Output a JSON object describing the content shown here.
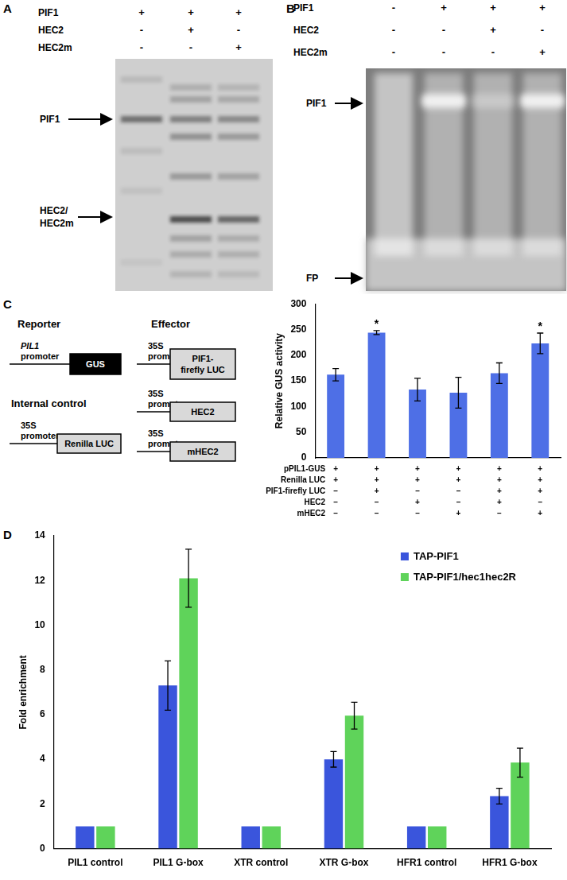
{
  "panel_labels": [
    "A",
    "B",
    "C",
    "D"
  ],
  "panel_a": {
    "rows": [
      {
        "name": "PIF1",
        "signs": [
          "+",
          "+",
          "+"
        ]
      },
      {
        "name": "HEC2",
        "signs": [
          "-",
          "+",
          "-"
        ]
      },
      {
        "name": "HEC2m",
        "signs": [
          "-",
          "-",
          "+"
        ]
      }
    ],
    "band_labels": [
      [
        "PIF1"
      ],
      [
        "HEC2/",
        "HEC2m"
      ]
    ]
  },
  "panel_b": {
    "rows": [
      {
        "name": "PIF1",
        "signs": [
          "-",
          "+",
          "+",
          "+"
        ]
      },
      {
        "name": "HEC2",
        "signs": [
          "-",
          "-",
          "+",
          "-"
        ]
      },
      {
        "name": "HEC2m",
        "signs": [
          "-",
          "-",
          "-",
          "+"
        ]
      }
    ],
    "band_labels": [
      [
        "PIF1"
      ],
      [
        "FP"
      ]
    ]
  },
  "panel_c_diagram": {
    "reporter_title": "Reporter",
    "internal_control_title": "Internal control",
    "effector_title": "Effector",
    "reporter": {
      "promoter": [
        "PIL1",
        "promoter"
      ],
      "gene": [
        "GUS"
      ]
    },
    "internal_control": {
      "promoter": [
        "35S",
        "promoter"
      ],
      "gene": [
        "Renilla LUC"
      ]
    },
    "effectors": [
      {
        "promoter": [
          "35S",
          "promoter"
        ],
        "gene": [
          "PIF1-",
          "firefly LUC"
        ]
      },
      {
        "promoter": [
          "35S",
          "promoter"
        ],
        "gene": [
          "HEC2"
        ]
      },
      {
        "promoter": [
          "35S",
          "promoter"
        ],
        "gene": [
          "mHEC2"
        ]
      }
    ]
  },
  "chart_data": [
    {
      "type": "bar",
      "y_label": "Relative GUS activity",
      "categories": [
        null,
        null,
        null,
        null,
        null,
        null
      ],
      "values": [
        162,
        244,
        133,
        127,
        165,
        223
      ],
      "errors": [
        12,
        4,
        22,
        30,
        20,
        20
      ],
      "significance": [
        null,
        "*",
        null,
        null,
        null,
        "*"
      ],
      "conditions": [
        {
          "name": "pPIL1-GUS",
          "signs": [
            "+",
            "+",
            "+",
            "+",
            "+",
            "+"
          ]
        },
        {
          "name": "Renilla LUC",
          "signs": [
            "+",
            "+",
            "+",
            "+",
            "+",
            "+"
          ]
        },
        {
          "name": "PIF1-firefly LUC",
          "signs": [
            "–",
            "+",
            "–",
            "–",
            "+",
            "+"
          ]
        },
        {
          "name": "HEC2",
          "signs": [
            "–",
            "–",
            "+",
            "–",
            "+",
            "–"
          ]
        },
        {
          "name": "mHEC2",
          "signs": [
            "–",
            "–",
            "–",
            "+",
            "–",
            "+"
          ]
        }
      ],
      "color": "#4e6fe6",
      "ylim": [
        0,
        300
      ],
      "yticks": [
        0,
        50,
        100,
        150,
        200,
        250,
        300
      ],
      "grid": false,
      "tick_labels": "y"
    },
    {
      "type": "bar",
      "y_label": "Fold enrichment",
      "categories": [
        "PIL1 control",
        "PIL1 G-box",
        "XTR control",
        "XTR G-box",
        "HFR1 control",
        "HFR1 G-box"
      ],
      "series": [
        {
          "name": "TAP-PIF1",
          "color": "#3a55dc",
          "values": [
            1,
            7.3,
            1,
            4.0,
            1,
            2.35
          ],
          "errors": [
            null,
            1.1,
            null,
            0.35,
            null,
            0.35
          ]
        },
        {
          "name": "TAP-PIF1/hec1hec2R",
          "color": "#5fd35a",
          "values": [
            1,
            12.1,
            1,
            5.95,
            1,
            3.85
          ],
          "errors": [
            null,
            1.3,
            null,
            0.6,
            null,
            0.65
          ]
        }
      ],
      "ylim": [
        0,
        14
      ],
      "yticks": [
        0,
        2,
        4,
        6,
        8,
        10,
        12,
        14
      ],
      "grid": false,
      "legend": "top-right"
    }
  ]
}
